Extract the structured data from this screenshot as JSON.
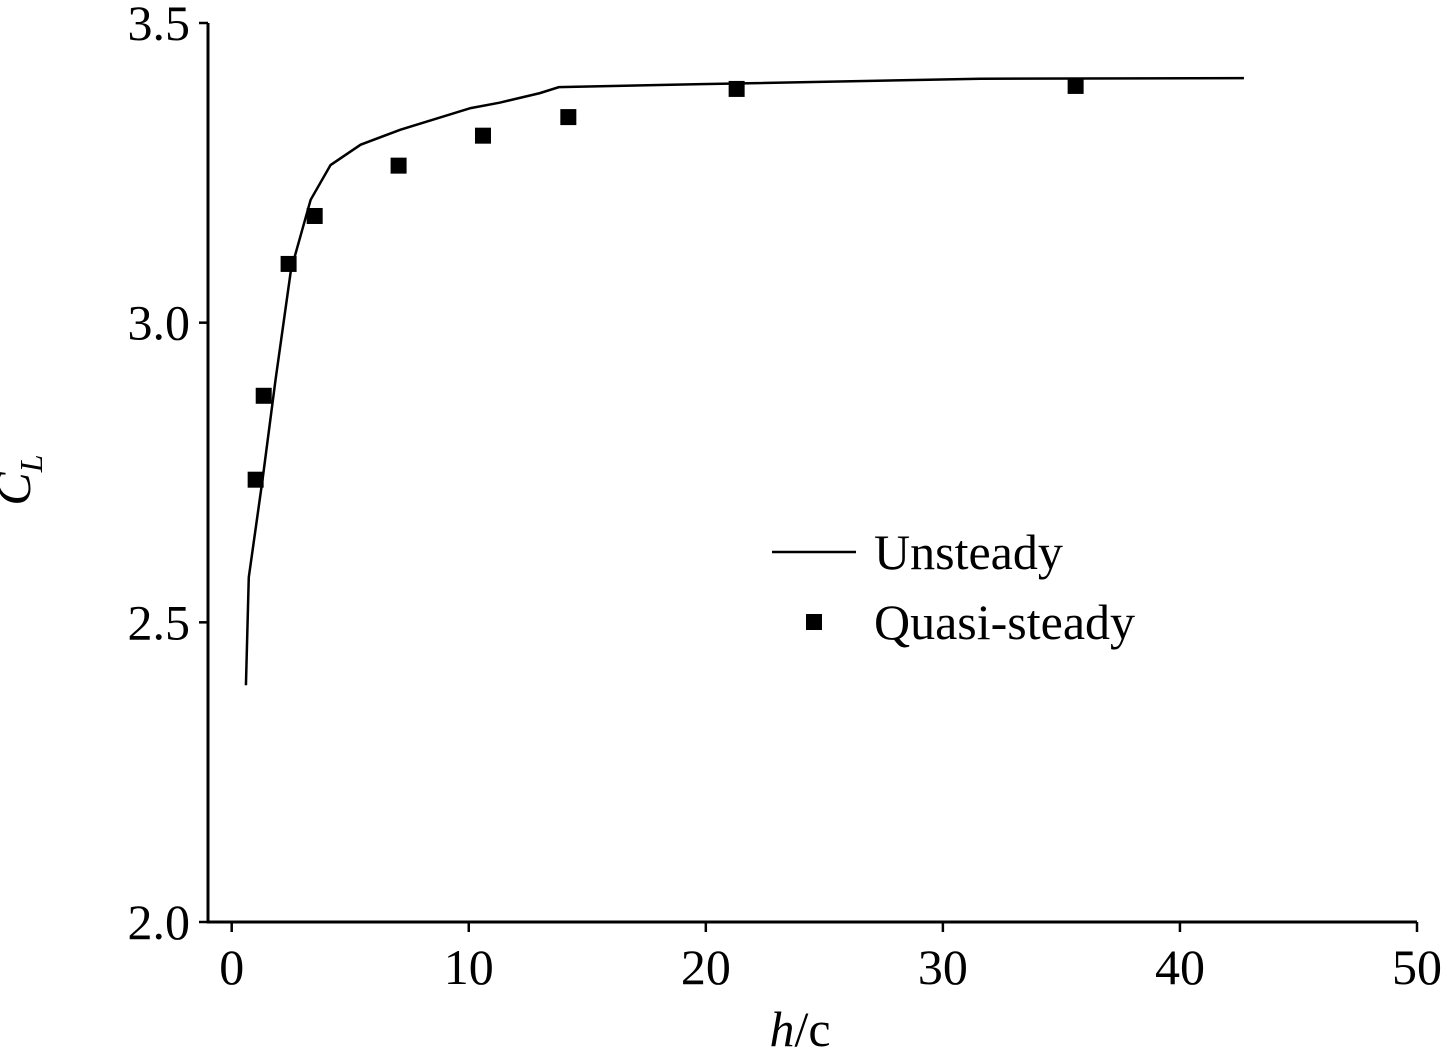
{
  "chart_data": {
    "type": "line",
    "xlabel": [
      "h",
      "/c"
    ],
    "ylabel": [
      "C",
      "L"
    ],
    "xlim": [
      -1,
      50
    ],
    "ylim": [
      2.0,
      3.5
    ],
    "xticks": [
      0,
      10,
      20,
      30,
      40,
      50
    ],
    "yticks": [
      {
        "value": 2.0,
        "label": "2.0"
      },
      {
        "value": 2.5,
        "label": "2.5"
      },
      {
        "value": 3.0,
        "label": "3.0"
      },
      {
        "value": 3.5,
        "label": "3.5"
      }
    ],
    "legend": "center-right",
    "series": [
      {
        "name": "Unsteady",
        "type": "line",
        "color": "#000000",
        "x": [
          0.6,
          0.72,
          1.3,
          1.85,
          2.5,
          3.33,
          4.17,
          5.44,
          7.12,
          10.08,
          11.3,
          13.0,
          13.8,
          19.8,
          31.6,
          42.7
        ],
        "values": [
          2.395,
          2.575,
          2.738,
          2.905,
          3.088,
          3.205,
          3.263,
          3.297,
          3.322,
          3.358,
          3.367,
          3.383,
          3.393,
          3.398,
          3.407,
          3.408
        ]
      },
      {
        "name": "Quasi-steady",
        "type": "scatter",
        "color": "#000000",
        "x": [
          1.01,
          1.35,
          2.4,
          3.5,
          7.04,
          10.6,
          14.2,
          21.3,
          35.6
        ],
        "values": [
          2.738,
          2.878,
          3.098,
          3.178,
          3.262,
          3.312,
          3.343,
          3.39,
          3.395
        ]
      }
    ]
  }
}
